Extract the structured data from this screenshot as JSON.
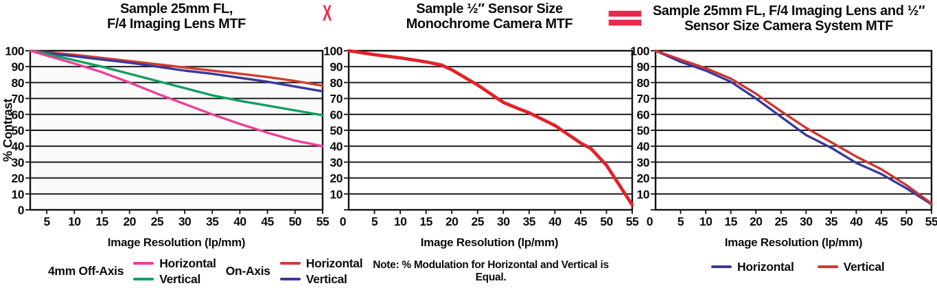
{
  "figure": {
    "operators": {
      "multiply": "X",
      "equals": "=",
      "color": "#e8294b"
    }
  },
  "chart_data": [
    {
      "id": "lens-mtf",
      "type": "line",
      "title": "Sample 25mm FL, F/4 Imaging Lens MTF",
      "title_lines": [
        "Sample 25mm FL,",
        "F/4 Imaging Lens MTF"
      ],
      "xlabel": "Image Resolution (lp/mm)",
      "ylabel": "% Contrast",
      "xlim": [
        2,
        55
      ],
      "ylim": [
        0,
        100
      ],
      "xticks": [
        5,
        10,
        15,
        20,
        25,
        30,
        35,
        40,
        45,
        50,
        55
      ],
      "yticks": [
        0,
        10,
        20,
        30,
        40,
        50,
        60,
        70,
        80,
        90,
        100
      ],
      "grid": "horizontal-only",
      "legend_position": "bottom",
      "plot_bg": "#fbfafa",
      "series": [
        {
          "name": "On-Axis Horizontal",
          "color": "#d13c34",
          "x": [
            2,
            5,
            10,
            15,
            20,
            25,
            30,
            35,
            40,
            45,
            50,
            55
          ],
          "y": [
            100,
            99,
            97.5,
            95.5,
            93.5,
            91.5,
            89.5,
            87.5,
            85.5,
            83.5,
            81,
            78
          ]
        },
        {
          "name": "On-Axis Vertical",
          "color": "#39399b",
          "x": [
            2,
            5,
            10,
            15,
            20,
            25,
            30,
            35,
            40,
            45,
            50,
            55
          ],
          "y": [
            100,
            98.5,
            96.5,
            94.5,
            92.5,
            90,
            87.5,
            85.5,
            83,
            80.5,
            77.5,
            74.5
          ]
        },
        {
          "name": "4mm Off-Axis Vertical",
          "color": "#0ca05e",
          "x": [
            2,
            5,
            10,
            15,
            20,
            25,
            30,
            35,
            40,
            45,
            50,
            55
          ],
          "y": [
            100,
            98,
            94,
            90,
            85.5,
            81,
            76.5,
            72,
            68.5,
            65.5,
            62.5,
            59.5
          ]
        },
        {
          "name": "4mm Off-Axis Horizontal",
          "color": "#ee3e96",
          "x": [
            2,
            5,
            10,
            15,
            20,
            25,
            30,
            35,
            40,
            45,
            50,
            55
          ],
          "y": [
            100,
            97,
            92,
            86.5,
            80,
            73,
            66.5,
            60,
            54,
            48.5,
            43.5,
            40
          ]
        }
      ],
      "legend": {
        "groups": [
          {
            "label": "4mm Off-Axis",
            "entries": [
              {
                "label": "Horizontal",
                "color": "#ee3e96"
              },
              {
                "label": "Vertical",
                "color": "#0ca05e"
              }
            ]
          },
          {
            "label": "On-Axis",
            "entries": [
              {
                "label": "Horizontal",
                "color": "#d13c34"
              },
              {
                "label": "Vertical",
                "color": "#39399b"
              }
            ]
          }
        ]
      }
    },
    {
      "id": "camera-mtf",
      "type": "line",
      "title": "Sample ½″ Sensor Size Monochrome Camera MTF",
      "title_lines": [
        "Sample ½″ Sensor Size",
        "Monochrome Camera MTF"
      ],
      "xlabel": "Image Resolution (lp/mm)",
      "note": "Note: % Modulation for Horizontal and Vertical is Equal.",
      "xlim": [
        0,
        55
      ],
      "ylim": [
        0,
        100
      ],
      "xticks": [
        0,
        5,
        10,
        15,
        20,
        25,
        30,
        35,
        40,
        45,
        50,
        55
      ],
      "yticks": [
        0,
        10,
        20,
        30,
        40,
        50,
        60,
        70,
        80,
        90,
        100
      ],
      "grid": "horizontal-only",
      "plot_bg": "#ffffff",
      "series": [
        {
          "name": "Horizontal / Vertical (equal)",
          "color": "#e32129",
          "x": [
            0,
            5,
            10,
            15,
            18,
            20,
            25,
            30,
            33,
            35,
            40,
            45,
            47,
            50,
            55
          ],
          "y": [
            100,
            97.5,
            95.5,
            93,
            91,
            88,
            78.5,
            67.5,
            63.5,
            61,
            53,
            42,
            38.5,
            28,
            3
          ]
        }
      ]
    },
    {
      "id": "system-mtf",
      "type": "line",
      "title": "Sample 25mm FL, F/4 Imaging Lens and ½″ Sensor Size Camera System MTF",
      "title_lines": [
        "Sample 25mm FL, F/4 Imaging Lens and ½″",
        "Sensor Size Camera System MTF"
      ],
      "xlabel": "Image Resolution (lp/mm)",
      "xlim": [
        0,
        55
      ],
      "ylim": [
        0,
        100
      ],
      "xticks": [
        0,
        5,
        10,
        15,
        20,
        25,
        30,
        35,
        40,
        45,
        50,
        55
      ],
      "yticks": [
        0,
        10,
        20,
        30,
        40,
        50,
        60,
        70,
        80,
        90,
        100
      ],
      "grid": "horizontal-only",
      "plot_bg": "#ffffff",
      "series": [
        {
          "name": "Horizontal",
          "color": "#39399b",
          "x": [
            0,
            5,
            10,
            15,
            20,
            25,
            30,
            35,
            40,
            45,
            50,
            55
          ],
          "y": [
            100,
            93,
            87.5,
            80.5,
            70,
            58.5,
            47,
            39,
            29.5,
            22.5,
            13.5,
            3.5
          ]
        },
        {
          "name": "Vertical",
          "color": "#ce3430",
          "x": [
            0,
            5,
            10,
            15,
            20,
            25,
            30,
            35,
            40,
            45,
            50,
            55
          ],
          "y": [
            100,
            94.5,
            89,
            82.5,
            73,
            62,
            51.5,
            42.5,
            33.5,
            25.5,
            15.5,
            4
          ]
        }
      ],
      "legend": {
        "entries": [
          {
            "label": "Horizontal",
            "color": "#39399b"
          },
          {
            "label": "Vertical",
            "color": "#ce3430"
          }
        ]
      }
    }
  ]
}
